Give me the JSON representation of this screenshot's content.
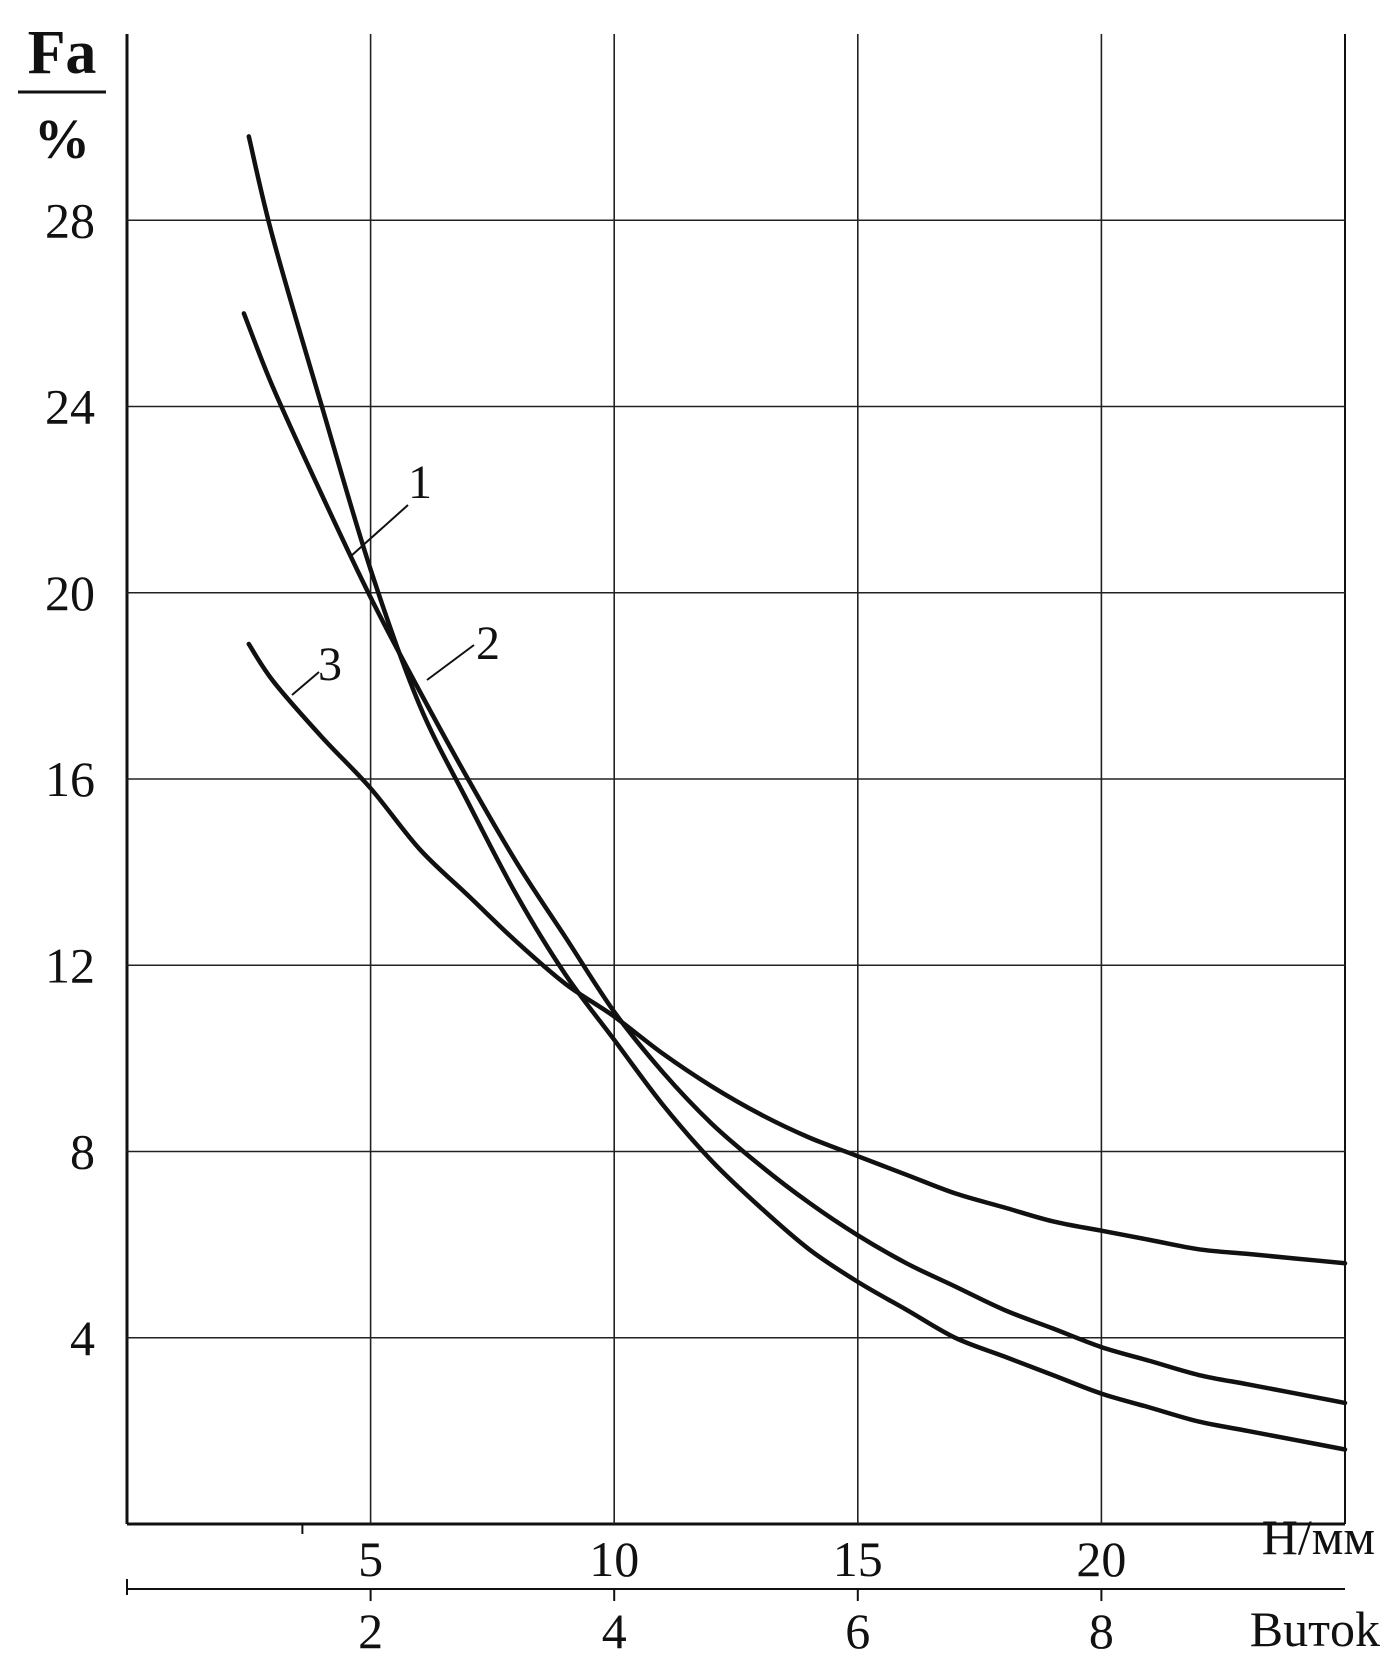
{
  "chart_data": {
    "type": "line",
    "ylabel_top": "Fa",
    "ylabel_unit": "%",
    "xlabel": "H/мм",
    "x2label": "Buтok",
    "xlim": [
      0,
      25
    ],
    "ylim": [
      0,
      32
    ],
    "yticks": [
      4,
      8,
      12,
      16,
      20,
      24,
      28
    ],
    "xticks": [
      5,
      10,
      15,
      20
    ],
    "x2ticks": [
      {
        "value": 2,
        "x": 5
      },
      {
        "value": 4,
        "x": 10
      },
      {
        "value": 6,
        "x": 15
      },
      {
        "value": 8,
        "x": 20
      }
    ],
    "grid": true,
    "series": [
      {
        "name": "1",
        "x": [
          2.4,
          3,
          4,
          5,
          6,
          7,
          8,
          9,
          10,
          11,
          12,
          13,
          14,
          15,
          16,
          17,
          18,
          19,
          20,
          21,
          22,
          23,
          24,
          25
        ],
        "y": [
          26.0,
          24.4,
          22.1,
          19.9,
          17.9,
          16.0,
          14.2,
          12.6,
          11.0,
          9.7,
          8.6,
          7.7,
          6.9,
          6.2,
          5.6,
          5.1,
          4.6,
          4.2,
          3.8,
          3.5,
          3.2,
          3.0,
          2.8,
          2.6
        ]
      },
      {
        "name": "2",
        "x": [
          2.5,
          3,
          4,
          5,
          6,
          7,
          8,
          9,
          10,
          11,
          12,
          13,
          14,
          15,
          16,
          17,
          18,
          19,
          20,
          21,
          22,
          23,
          24,
          25
        ],
        "y": [
          29.8,
          27.6,
          24.0,
          20.5,
          17.6,
          15.5,
          13.5,
          11.8,
          10.4,
          9.0,
          7.8,
          6.8,
          5.9,
          5.2,
          4.6,
          4.0,
          3.6,
          3.2,
          2.8,
          2.5,
          2.2,
          2.0,
          1.8,
          1.6
        ]
      },
      {
        "name": "3",
        "x": [
          2.5,
          3,
          4,
          5,
          6,
          7,
          8,
          9,
          10,
          11,
          12,
          13,
          14,
          15,
          16,
          17,
          18,
          19,
          20,
          21,
          22,
          23,
          24,
          25
        ],
        "y": [
          18.9,
          18.1,
          16.9,
          15.8,
          14.5,
          13.5,
          12.5,
          11.6,
          10.9,
          10.1,
          9.4,
          8.8,
          8.3,
          7.9,
          7.5,
          7.1,
          6.8,
          6.5,
          6.3,
          6.1,
          5.9,
          5.8,
          5.7,
          5.6
        ]
      }
    ],
    "line_color": "#111111"
  }
}
